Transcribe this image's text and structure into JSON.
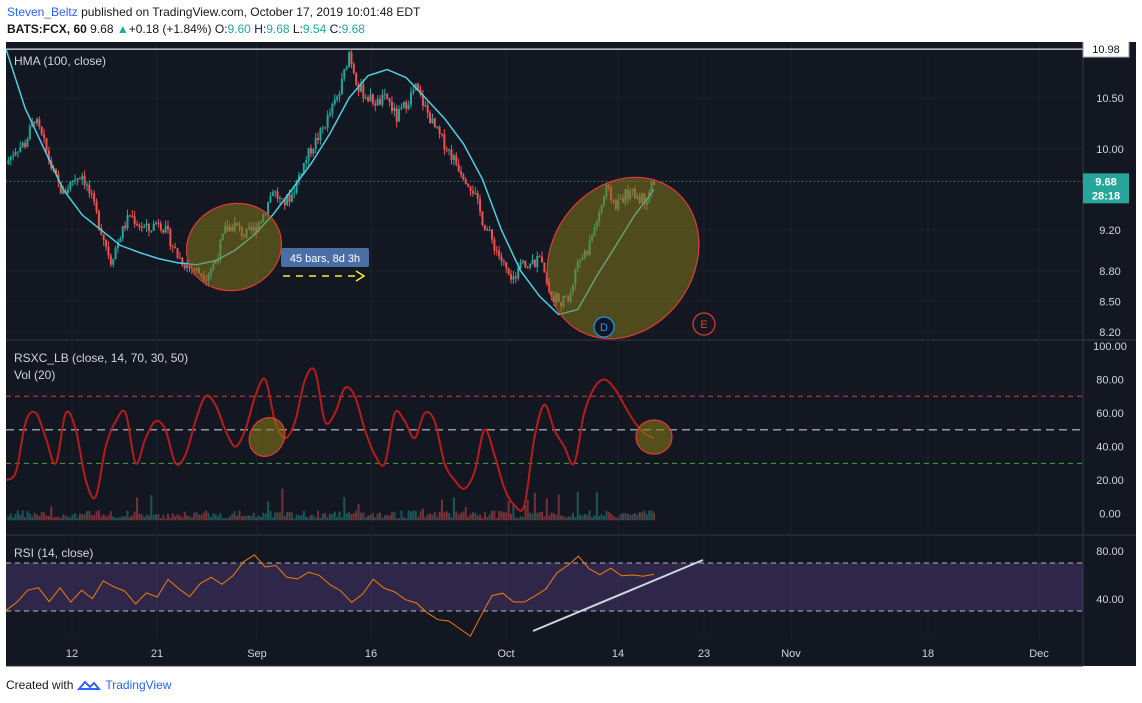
{
  "header": {
    "user": "Steven_Beltz",
    "published": "published on TradingView.com, October 17, 2019 10:01:48 EDT",
    "symbol": "BATS:FCX, 60",
    "price": "9.68",
    "change": "+0.18 (+1.84%)",
    "o_label": "O:",
    "o": "9.60",
    "h_label": "H:",
    "h": "9.68",
    "l_label": "L:",
    "l": "9.54",
    "c_label": "C:",
    "c": "9.68"
  },
  "footer": {
    "created_with": "Created with",
    "brand": "TradingView"
  },
  "chart_data": [
    {
      "type": "candlestick",
      "panel": "price",
      "indicator_label": "HMA (100, close)",
      "y_ticks": [
        8.2,
        8.5,
        8.8,
        9.2,
        9.68,
        10.0,
        10.5,
        10.98
      ],
      "ylim": [
        8.12,
        11.05
      ],
      "price_labels": {
        "high_line": "10.98",
        "last": "9.68",
        "countdown": "28:18"
      },
      "x_ticks": [
        "12",
        "21",
        "Sep",
        "16",
        "Oct",
        "14",
        "23",
        "Nov",
        "18",
        "Dec"
      ],
      "annotations": {
        "measure": "45 bars, 8d 3h",
        "marker_d": "D",
        "marker_e": "E"
      },
      "close_path": [
        [
          0,
          9.85
        ],
        [
          4,
          10.0
        ],
        [
          8,
          10.05
        ],
        [
          12,
          10.3
        ],
        [
          16,
          10.05
        ],
        [
          20,
          9.75
        ],
        [
          24,
          9.55
        ],
        [
          28,
          9.7
        ],
        [
          32,
          9.75
        ],
        [
          36,
          9.5
        ],
        [
          40,
          9.2
        ],
        [
          44,
          8.9
        ],
        [
          48,
          9.15
        ],
        [
          52,
          9.35
        ],
        [
          56,
          9.25
        ],
        [
          60,
          9.2
        ],
        [
          64,
          9.3
        ],
        [
          68,
          9.15
        ],
        [
          72,
          8.95
        ],
        [
          76,
          8.85
        ],
        [
          80,
          8.8
        ],
        [
          84,
          8.75
        ],
        [
          88,
          8.9
        ],
        [
          92,
          9.2
        ],
        [
          96,
          9.25
        ],
        [
          100,
          9.15
        ],
        [
          104,
          9.2
        ],
        [
          108,
          9.35
        ],
        [
          112,
          9.6
        ],
        [
          116,
          9.45
        ],
        [
          120,
          9.55
        ],
        [
          124,
          9.8
        ],
        [
          128,
          10.0
        ],
        [
          132,
          10.15
        ],
        [
          136,
          10.35
        ],
        [
          140,
          10.55
        ],
        [
          144,
          10.95
        ],
        [
          148,
          10.6
        ],
        [
          152,
          10.5
        ],
        [
          156,
          10.45
        ],
        [
          160,
          10.5
        ],
        [
          164,
          10.3
        ],
        [
          168,
          10.45
        ],
        [
          172,
          10.6
        ],
        [
          176,
          10.4
        ],
        [
          180,
          10.2
        ],
        [
          184,
          10.05
        ],
        [
          188,
          9.9
        ],
        [
          192,
          9.75
        ],
        [
          196,
          9.6
        ],
        [
          200,
          9.3
        ],
        [
          204,
          9.1
        ],
        [
          208,
          8.9
        ],
        [
          212,
          8.7
        ],
        [
          216,
          8.85
        ],
        [
          220,
          8.85
        ],
        [
          224,
          8.9
        ],
        [
          228,
          8.6
        ],
        [
          232,
          8.5
        ],
        [
          236,
          8.5
        ],
        [
          240,
          8.9
        ],
        [
          244,
          9.0
        ],
        [
          248,
          9.3
        ],
        [
          252,
          9.6
        ],
        [
          256,
          9.45
        ],
        [
          260,
          9.55
        ],
        [
          264,
          9.55
        ],
        [
          268,
          9.5
        ],
        [
          272,
          9.68
        ]
      ],
      "hma_path": [
        [
          0,
          10.98
        ],
        [
          8,
          10.4
        ],
        [
          16,
          10.0
        ],
        [
          24,
          9.6
        ],
        [
          32,
          9.35
        ],
        [
          40,
          9.2
        ],
        [
          48,
          9.05
        ],
        [
          56,
          8.98
        ],
        [
          64,
          8.92
        ],
        [
          72,
          8.88
        ],
        [
          80,
          8.86
        ],
        [
          88,
          8.9
        ],
        [
          96,
          9.0
        ],
        [
          104,
          9.15
        ],
        [
          112,
          9.35
        ],
        [
          120,
          9.6
        ],
        [
          128,
          9.85
        ],
        [
          136,
          10.15
        ],
        [
          144,
          10.5
        ],
        [
          152,
          10.72
        ],
        [
          160,
          10.78
        ],
        [
          168,
          10.7
        ],
        [
          176,
          10.5
        ],
        [
          184,
          10.3
        ],
        [
          192,
          10.05
        ],
        [
          200,
          9.7
        ],
        [
          208,
          9.2
        ],
        [
          216,
          8.8
        ],
        [
          224,
          8.55
        ],
        [
          232,
          8.37
        ],
        [
          240,
          8.42
        ],
        [
          248,
          8.75
        ],
        [
          256,
          9.05
        ],
        [
          264,
          9.35
        ],
        [
          272,
          9.6
        ]
      ]
    },
    {
      "type": "line",
      "panel": "oscillator",
      "indicator_label": "RSXC_LB (close, 14, 70, 30, 50)",
      "volume_label": "Vol (20)",
      "y_ticks": [
        0.0,
        20.0,
        40.0,
        60.0,
        80.0,
        100.0
      ],
      "levels": {
        "overbought": 70,
        "midline": 50,
        "oversold": 30
      },
      "values": [
        20,
        25,
        55,
        60,
        45,
        30,
        60,
        50,
        20,
        10,
        40,
        55,
        60,
        30,
        45,
        55,
        50,
        30,
        35,
        55,
        70,
        65,
        50,
        40,
        50,
        70,
        80,
        55,
        45,
        55,
        80,
        85,
        55,
        60,
        75,
        70,
        50,
        35,
        30,
        60,
        55,
        45,
        60,
        55,
        30,
        20,
        15,
        25,
        50,
        35,
        15,
        5,
        5,
        45,
        65,
        50,
        40,
        30,
        60,
        75,
        80,
        75,
        65,
        55,
        48,
        45
      ]
    },
    {
      "type": "line",
      "panel": "rsi",
      "indicator_label": "RSI (14, close)",
      "y_ticks": [
        40.0,
        80.0
      ],
      "levels": {
        "upper": 70,
        "lower": 30
      },
      "values": [
        30,
        35,
        45,
        50,
        40,
        48,
        35,
        45,
        40,
        55,
        50,
        45,
        35,
        45,
        40,
        55,
        50,
        45,
        55,
        60,
        50,
        60,
        70,
        75,
        65,
        70,
        60,
        55,
        65,
        60,
        50,
        45,
        40,
        45,
        55,
        50,
        45,
        40,
        35,
        30,
        25,
        20,
        15,
        10,
        25,
        40,
        45,
        40,
        35,
        40,
        50,
        60,
        70,
        75,
        68,
        60,
        65,
        62,
        60,
        58,
        62
      ]
    }
  ]
}
